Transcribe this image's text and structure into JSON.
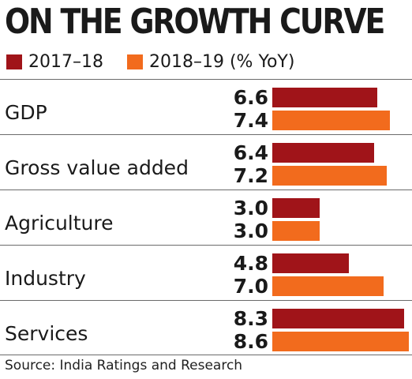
{
  "colors": {
    "series_2017_18": "#a01419",
    "series_2018_19": "#f26b1d",
    "rule": "#6b6b6b"
  },
  "chart_data": {
    "type": "bar",
    "orientation": "horizontal",
    "title": "ON THE GROWTH CURVE",
    "categories": [
      "GDP",
      "Gross value added",
      "Agriculture",
      "Industry",
      "Services"
    ],
    "series": [
      {
        "name": "2017–18",
        "values": [
          "6.6",
          "6.4",
          "3.0",
          "4.8",
          "8.3"
        ]
      },
      {
        "name": "2018–19 (% YoY)",
        "values": [
          "7.4",
          "7.2",
          "3.0",
          "7.0",
          "8.6"
        ]
      }
    ],
    "xlim": [
      0,
      8.6
    ],
    "grid": false,
    "legend_position": "top-left",
    "source": "Source: India Ratings and Research"
  }
}
